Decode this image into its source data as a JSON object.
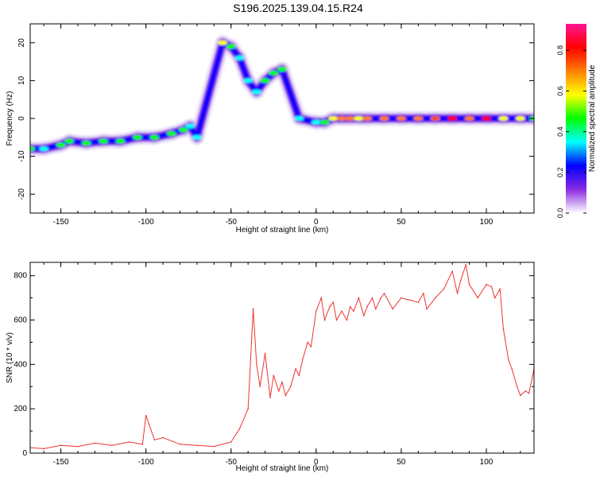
{
  "page": {
    "title": "S196.2025.139.04.15.R24"
  },
  "chart_data": [
    {
      "type": "heatmap",
      "xlabel": "Height of straight line (km)",
      "ylabel": "Frequency (Hz)",
      "xlim": [
        -168,
        128
      ],
      "ylim": [
        -25,
        25
      ],
      "xticks": [
        -150,
        -100,
        -50,
        0,
        50,
        100
      ],
      "yticks": [
        -20,
        -10,
        0,
        10,
        20
      ],
      "colorbar": {
        "label": "Normalized spectral amplitude",
        "range": [
          0,
          0.93
        ],
        "ticks": [
          0.0,
          0.2,
          0.4,
          0.6,
          0.8
        ],
        "tick_labels": [
          "0.0",
          "0.2",
          "0.4",
          "0.6",
          "0.8"
        ],
        "colors": [
          "#ffffff",
          "#8a2be2",
          "#0000ff",
          "#00ffff",
          "#00ff00",
          "#ffff00",
          "#ff8000",
          "#ff0000",
          "#ff1493"
        ]
      },
      "ridge": [
        [
          -168,
          -8,
          0.45
        ],
        [
          -160,
          -8,
          0.4
        ],
        [
          -150,
          -7,
          0.5
        ],
        [
          -145,
          -6,
          0.45
        ],
        [
          -135,
          -6.5,
          0.5
        ],
        [
          -125,
          -6,
          0.45
        ],
        [
          -115,
          -6,
          0.5
        ],
        [
          -105,
          -5,
          0.45
        ],
        [
          -95,
          -5,
          0.5
        ],
        [
          -85,
          -4,
          0.45
        ],
        [
          -78,
          -3,
          0.5
        ],
        [
          -74,
          -2,
          0.35
        ],
        [
          -70,
          -5,
          0.3
        ],
        [
          -55,
          20,
          0.6
        ],
        [
          -50,
          19,
          0.5
        ],
        [
          -45,
          16,
          0.35
        ],
        [
          -40,
          10,
          0.35
        ],
        [
          -35,
          7,
          0.4
        ],
        [
          -30,
          10,
          0.45
        ],
        [
          -25,
          12,
          0.5
        ],
        [
          -20,
          13,
          0.45
        ],
        [
          -10,
          0,
          0.4
        ],
        [
          0,
          -1,
          0.35
        ],
        [
          5,
          -1,
          0.45
        ],
        [
          10,
          0,
          0.6
        ],
        [
          15,
          0,
          0.7
        ],
        [
          20,
          0,
          0.65
        ],
        [
          25,
          0,
          0.6
        ],
        [
          30,
          0,
          0.65
        ],
        [
          40,
          0,
          0.7
        ],
        [
          50,
          0,
          0.65
        ],
        [
          60,
          0,
          0.7
        ],
        [
          70,
          0,
          0.75
        ],
        [
          80,
          0,
          0.8
        ],
        [
          90,
          0,
          0.7
        ],
        [
          100,
          0,
          0.8
        ],
        [
          110,
          0,
          0.6
        ],
        [
          120,
          0,
          0.55
        ],
        [
          128,
          0,
          0.5
        ]
      ]
    },
    {
      "type": "line",
      "xlabel": "Height of straight line (km)",
      "ylabel": "SNR (10 * v/v)",
      "xlim": [
        -168,
        128
      ],
      "ylim": [
        0,
        860
      ],
      "xticks": [
        -150,
        -100,
        -50,
        0,
        50,
        100
      ],
      "yticks": [
        0,
        200,
        400,
        600,
        800
      ],
      "line_color": "#ee3333",
      "series": [
        {
          "x": [
            -168,
            -160,
            -150,
            -140,
            -130,
            -120,
            -110,
            -102,
            -100,
            -95,
            -90,
            -80,
            -70,
            -60,
            -50,
            -45,
            -40,
            -37,
            -35,
            -33,
            -30,
            -27,
            -25,
            -22,
            -20,
            -18,
            -15,
            -12,
            -10,
            -8,
            -5,
            -3,
            0,
            3,
            5,
            8,
            10,
            12,
            15,
            18,
            20,
            22,
            25,
            28,
            30,
            33,
            35,
            38,
            40,
            45,
            50,
            55,
            60,
            63,
            65,
            70,
            75,
            80,
            83,
            85,
            88,
            90,
            95,
            100,
            103,
            105,
            108,
            110,
            113,
            115,
            118,
            120,
            123,
            125,
            128
          ],
          "y": [
            25,
            20,
            35,
            30,
            45,
            35,
            50,
            40,
            170,
            60,
            70,
            40,
            35,
            30,
            50,
            110,
            200,
            650,
            400,
            300,
            450,
            250,
            350,
            280,
            320,
            260,
            300,
            380,
            350,
            420,
            500,
            480,
            640,
            700,
            600,
            660,
            680,
            600,
            640,
            600,
            660,
            640,
            700,
            620,
            660,
            700,
            650,
            700,
            720,
            650,
            700,
            690,
            680,
            720,
            650,
            700,
            740,
            820,
            720,
            780,
            850,
            760,
            700,
            760,
            750,
            700,
            740,
            560,
            420,
            380,
            300,
            260,
            280,
            270,
            380
          ]
        }
      ]
    }
  ]
}
